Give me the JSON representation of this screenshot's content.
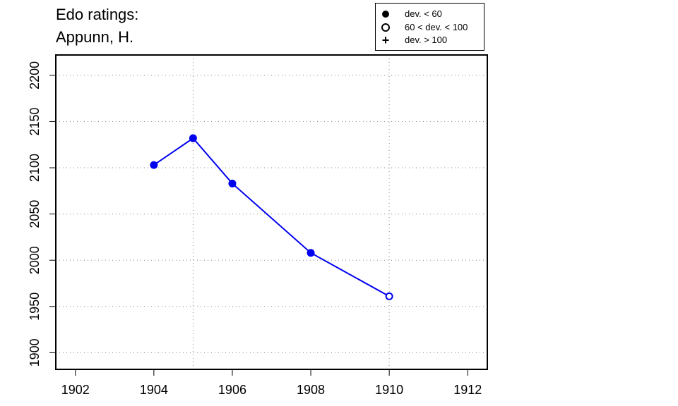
{
  "chart_data": {
    "type": "line",
    "title_lines": [
      "Edo ratings:",
      "Appunn, H."
    ],
    "xlabel": "",
    "ylabel": "",
    "xlim": [
      1901.5,
      1912.5
    ],
    "ylim": [
      1882,
      2222
    ],
    "x_ticks": [
      1902,
      1904,
      1906,
      1908,
      1910,
      1912
    ],
    "y_ticks": [
      1900,
      1950,
      2000,
      2050,
      2100,
      2150,
      2200
    ],
    "x_grid": [
      1905,
      1910
    ],
    "grid": true,
    "legend_position": "top-right",
    "legend": [
      {
        "symbol": "filled-circle",
        "label": "dev. < 60"
      },
      {
        "symbol": "open-circle",
        "label": "60 < dev. < 100"
      },
      {
        "symbol": "plus",
        "label": "dev. > 100"
      }
    ],
    "series": [
      {
        "color": "#0000ee",
        "points": [
          {
            "x": 1904,
            "y": 2103,
            "marker": "filled-circle"
          },
          {
            "x": 1905,
            "y": 2132,
            "marker": "filled-circle"
          },
          {
            "x": 1906,
            "y": 2083,
            "marker": "filled-circle"
          },
          {
            "x": 1908,
            "y": 2008,
            "marker": "filled-circle"
          },
          {
            "x": 1910,
            "y": 1961,
            "marker": "open-circle"
          }
        ]
      }
    ]
  }
}
